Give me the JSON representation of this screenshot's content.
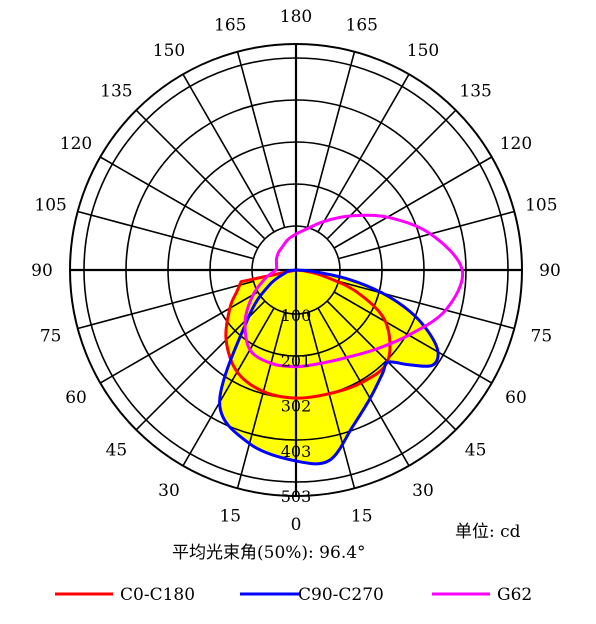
{
  "chart_data": {
    "type": "polar",
    "angle_labels_left": [
      "180",
      "165",
      "150",
      "135",
      "120",
      "105",
      "90",
      "75",
      "60",
      "45",
      "30",
      "15",
      "0"
    ],
    "angle_labels_right": [
      "165",
      "150",
      "135",
      "120",
      "105",
      "90",
      "75",
      "60",
      "45",
      "30",
      "15"
    ],
    "radial_ticks": [
      "100",
      "201",
      "302",
      "403",
      "503"
    ],
    "rmax": 503,
    "unit_text": "单位: cd",
    "beam_angle_text": "平均光束角(50%): 96.4°",
    "series": [
      {
        "name": "C0-C180",
        "color": "#ff0000",
        "fill": "#ffff00",
        "points": [
          [
            -78,
            125
          ],
          [
            -70,
            140
          ],
          [
            -60,
            170
          ],
          [
            -45,
            220
          ],
          [
            -30,
            262
          ],
          [
            -15,
            280
          ],
          [
            0,
            285
          ],
          [
            15,
            285
          ],
          [
            30,
            290
          ],
          [
            45,
            288
          ],
          [
            60,
            230
          ],
          [
            70,
            145
          ],
          [
            78,
            60
          ],
          [
            85,
            15
          ]
        ]
      },
      {
        "name": "C90-C270",
        "color": "#0000ff",
        "fill": "#ffff00",
        "points": [
          [
            -85,
            15
          ],
          [
            -75,
            25
          ],
          [
            -60,
            70
          ],
          [
            -45,
            150
          ],
          [
            -30,
            340
          ],
          [
            -15,
            400
          ],
          [
            0,
            425
          ],
          [
            10,
            430
          ],
          [
            20,
            370
          ],
          [
            30,
            330
          ],
          [
            40,
            300
          ],
          [
            45,
            290
          ],
          [
            50,
            328
          ],
          [
            55,
            370
          ],
          [
            60,
            365
          ],
          [
            65,
            325
          ],
          [
            70,
            270
          ],
          [
            75,
            200
          ],
          [
            80,
            120
          ],
          [
            85,
            40
          ],
          [
            88,
            8
          ]
        ]
      },
      {
        "name": "G62",
        "color": "#ff00ff",
        "points": [
          [
            0,
            215
          ],
          [
            15,
            215
          ],
          [
            30,
            225
          ],
          [
            45,
            250
          ],
          [
            60,
            290
          ],
          [
            75,
            345
          ],
          [
            90,
            370
          ],
          [
            105,
            310
          ],
          [
            120,
            235
          ],
          [
            135,
            170
          ],
          [
            150,
            125
          ],
          [
            165,
            95
          ],
          [
            180,
            80
          ],
          [
            195,
            70
          ],
          [
            210,
            60
          ],
          [
            225,
            55
          ],
          [
            240,
            50
          ],
          [
            255,
            45
          ],
          [
            270,
            45
          ],
          [
            285,
            70
          ],
          [
            300,
            110
          ],
          [
            315,
            160
          ],
          [
            330,
            205
          ],
          [
            345,
            215
          ]
        ]
      }
    ]
  },
  "legend": [
    {
      "label": "C0-C180",
      "color": "#ff0000"
    },
    {
      "label": "C90-C270",
      "color": "#0000ff"
    },
    {
      "label": "G62",
      "color": "#ff00ff"
    }
  ]
}
